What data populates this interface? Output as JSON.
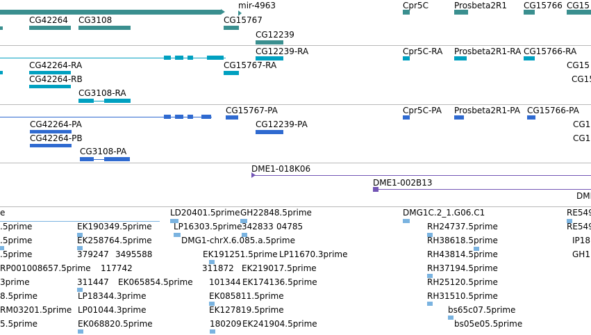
{
  "colors": {
    "gene": "#3a8f8f",
    "transcript": "#00a0c0",
    "protein": "#2f6ad0",
    "bac": "#7355b5",
    "est": "#7ab3e0",
    "separator": "#b8b8b8"
  },
  "tracks": {
    "genes": {
      "labels": [
        "mir-4963",
        "Cpr5C",
        "Prosbeta2R1",
        "CG15766",
        "CG15",
        "CG42264",
        "CG3108",
        "CG15767",
        "CG12239"
      ]
    },
    "transcripts": {
      "labels": [
        "CG12239-RA",
        "Cpr5C-RA",
        "Prosbeta2R1-RA",
        "CG15766-RA",
        "CG15",
        "CG42264-RA",
        "CG15767-RA",
        "CG42264-RB",
        "CG15",
        "CG3108-RA"
      ]
    },
    "proteins": {
      "labels": [
        "CG15767-PA",
        "Cpr5C-PA",
        "Prosbeta2R1-PA",
        "CG15766-PA",
        "CG42264-PA",
        "CG12239-PA",
        "CG1",
        "CG42264-PB",
        "CG1",
        "CG3108-PA"
      ]
    },
    "bacs": {
      "labels": [
        "DME1-018K06",
        "DME1-002B13",
        "DME"
      ]
    },
    "ests": {
      "labels": [
        "e",
        "LD20401.5prime",
        "GH22848.5prime",
        "DMG1C.2_1.G06.C1",
        "RE549",
        ".5prime",
        "EK190349.5prime",
        "LP16303.5prime",
        "342833",
        "04785",
        "RH24737.5prime",
        "RE549",
        ".5prime",
        "EK258764.5prime",
        "DMG1-chrX.6.085.a.5prime",
        "RH38618.5prime",
        "IP18",
        ".5prime",
        "379247",
        "3495588",
        "EK191251.5prime",
        "LP11670.3prime",
        "RH43814.5prime",
        "GH1",
        "RP001008657.5prime",
        "117742",
        "311872",
        "EK219017.5prime",
        "RH37194.5prime",
        "3prime",
        "311447",
        "EK065854.5prime",
        "101344",
        "EK174136.5prime",
        "RH25120.5prime",
        "8.5prime",
        "LP18344.3prime",
        "EK085811.5prime",
        "RH31510.5prime",
        "RM03201.5prime",
        "LP01044.3prime",
        "EK127819.5prime",
        "bs65c07.5prime",
        "5.5prime",
        "EK068820.5prime",
        "180209",
        "EK241904.5prime",
        "bs05e05.5prime"
      ]
    }
  }
}
